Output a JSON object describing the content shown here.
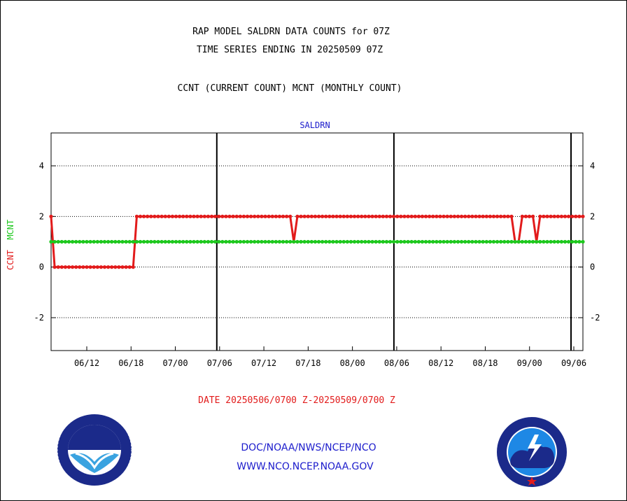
{
  "header": {
    "title_line1": "RAP MODEL SALDRN DATA COUNTS for 07Z",
    "title_line2": "TIME SERIES ENDING IN 20250509 07Z",
    "subtitle": "CCNT (CURRENT COUNT) MCNT (MONTHLY COUNT)"
  },
  "footer": {
    "date_range": "DATE 20250506/0700 Z-20250509/0700 Z",
    "credit_line1": "DOC/NOAA/NWS/NCEP/NCO",
    "credit_line2": "WWW.NCO.NCEP.NOAA.GOV"
  },
  "logos": {
    "left": "noaa-logo",
    "right": "national-weather-service-logo"
  },
  "chart_data": {
    "type": "line",
    "panel_title": "SALDRN",
    "ylabel_parts": [
      "CCNT",
      "MCNT"
    ],
    "ylim": [
      -3.3,
      5.3
    ],
    "yticks": [
      -2,
      0,
      2,
      4
    ],
    "ytick_labels": [
      "-2",
      "0",
      "2",
      "4"
    ],
    "xtick_labels": [
      "06/12",
      "06/18",
      "07/00",
      "07/06",
      "07/12",
      "07/18",
      "08/00",
      "08/06",
      "08/12",
      "08/18",
      "09/00",
      "09/06"
    ],
    "day_boundary_ticks": [
      "07/06",
      "08/06",
      "09/06"
    ],
    "grid": true,
    "colors": {
      "CCNT": "#e21b1b",
      "MCNT": "#1ec81e",
      "axis": "#000000",
      "panel_title": "#1c1ccc"
    },
    "series": [
      {
        "name": "CCNT",
        "values": [
          2,
          0,
          0,
          0,
          0,
          0,
          0,
          0,
          0,
          0,
          0,
          0,
          0,
          0,
          0,
          0,
          0,
          0,
          0,
          0,
          0,
          0,
          0,
          0,
          2,
          2,
          2,
          2,
          2,
          2,
          2,
          2,
          2,
          2,
          2,
          2,
          2,
          2,
          2,
          2,
          2,
          2,
          2,
          2,
          2,
          2,
          2,
          2,
          2,
          2,
          2,
          2,
          2,
          2,
          2,
          2,
          2,
          2,
          2,
          2,
          2,
          2,
          2,
          2,
          2,
          2,
          2,
          2,
          1,
          2,
          2,
          2,
          2,
          2,
          2,
          2,
          2,
          2,
          2,
          2,
          2,
          2,
          2,
          2,
          2,
          2,
          2,
          2,
          2,
          2,
          2,
          2,
          2,
          2,
          2,
          2,
          2,
          2,
          2,
          2,
          2,
          2,
          2,
          2,
          2,
          2,
          2,
          2,
          2,
          2,
          2,
          2,
          2,
          2,
          2,
          2,
          2,
          2,
          2,
          2,
          2,
          2,
          2,
          2,
          2,
          2,
          2,
          2,
          2,
          2,
          1,
          1,
          2,
          2,
          2,
          2,
          1,
          2,
          2,
          2,
          2,
          2,
          2,
          2,
          2,
          2,
          2,
          2,
          2,
          2
        ]
      },
      {
        "name": "MCNT",
        "values": [
          1,
          1,
          1,
          1,
          1,
          1,
          1,
          1,
          1,
          1,
          1,
          1,
          1,
          1,
          1,
          1,
          1,
          1,
          1,
          1,
          1,
          1,
          1,
          1,
          1,
          1,
          1,
          1,
          1,
          1,
          1,
          1,
          1,
          1,
          1,
          1,
          1,
          1,
          1,
          1,
          1,
          1,
          1,
          1,
          1,
          1,
          1,
          1,
          1,
          1,
          1,
          1,
          1,
          1,
          1,
          1,
          1,
          1,
          1,
          1,
          1,
          1,
          1,
          1,
          1,
          1,
          1,
          1,
          1,
          1,
          1,
          1,
          1,
          1,
          1,
          1,
          1,
          1,
          1,
          1,
          1,
          1,
          1,
          1,
          1,
          1,
          1,
          1,
          1,
          1,
          1,
          1,
          1,
          1,
          1,
          1,
          1,
          1,
          1,
          1,
          1,
          1,
          1,
          1,
          1,
          1,
          1,
          1,
          1,
          1,
          1,
          1,
          1,
          1,
          1,
          1,
          1,
          1,
          1,
          1,
          1,
          1,
          1,
          1,
          1,
          1,
          1,
          1,
          1,
          1,
          1,
          1,
          1,
          1,
          1,
          1,
          1,
          1,
          1,
          1,
          1,
          1,
          1,
          1,
          1,
          1,
          1,
          1,
          1,
          1
        ]
      }
    ]
  }
}
